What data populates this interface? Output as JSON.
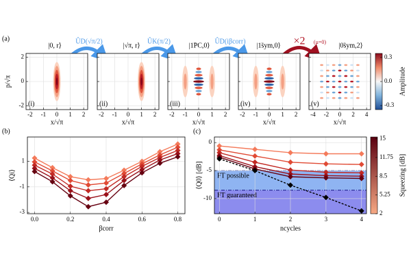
{
  "panel_a": {
    "label": "(a)",
    "states": [
      "|0, r⟩",
      "|√π, r⟩",
      "|1̃PC,0⟩",
      "|1̃sym,0⟩",
      "|0̃sym,2⟩"
    ],
    "operations": [
      "ÛD(√π/2)",
      "ÛK(π/2)",
      "ÛD(iβcorr)"
    ],
    "repeat": "×2",
    "repeat_note": "(μ=0)",
    "subpanels": [
      "(i)",
      "(ii)",
      "(iii)",
      "(iv)",
      "(v)"
    ],
    "xlabel": "x/√π",
    "ylabel": "p/√π",
    "xlim": [
      -2.3,
      2.3
    ],
    "xticks": [
      -2,
      -1,
      0,
      1,
      2
    ],
    "xlim_last": [
      -4.6,
      4.6
    ],
    "xticks_last": [
      -4,
      -2,
      0,
      2,
      4
    ],
    "ylim": [
      -2.3,
      2.3
    ],
    "yticks": [
      -2,
      0,
      2
    ],
    "colorbar": {
      "label": "Amplitude",
      "lim": [
        -0.35,
        0.35
      ],
      "ticks": [
        0.3,
        {
          "value": 0,
          "label": "0.0"
        },
        -0.3
      ]
    }
  },
  "chart_data": [
    {
      "type": "line",
      "label": "(b)",
      "xlabel": "βcorr",
      "ylabel": "⟨Qi⟩",
      "x": [
        0,
        0.1,
        0.2,
        0.3,
        0.4,
        0.5,
        0.6,
        0.7,
        0.8
      ],
      "xlim": [
        -0.04,
        0.84
      ],
      "xticks": [
        {
          "value": 0,
          "label": "0.0"
        },
        0.2,
        0.4,
        0.6,
        0.8
      ],
      "ylim": [
        -3.1,
        2.9
      ],
      "yticks": [
        1,
        -1,
        -3
      ],
      "grid": true,
      "series": [
        {
          "color": "#f47a5a",
          "values": [
            1.25,
            0.5,
            -0.2,
            -0.45,
            -0.35,
            0.3,
            1.0,
            1.75,
            2.35
          ]
        },
        {
          "color": "#e04a34",
          "values": [
            0.95,
            0.25,
            -0.5,
            -0.85,
            -0.7,
            0.05,
            0.8,
            1.5,
            2.1
          ]
        },
        {
          "color": "#c22a24",
          "values": [
            0.7,
            0.0,
            -0.95,
            -1.3,
            -1.15,
            -0.2,
            0.6,
            1.3,
            1.85
          ]
        },
        {
          "color": "#9a111a",
          "values": [
            0.45,
            -0.3,
            -1.3,
            -1.9,
            -1.6,
            -0.5,
            0.35,
            1.1,
            1.6
          ]
        },
        {
          "color": "#660010",
          "values": [
            0.2,
            -0.6,
            -1.7,
            -2.55,
            -2.2,
            -0.9,
            0.1,
            0.85,
            1.35
          ]
        }
      ]
    },
    {
      "type": "line",
      "label": "(c)",
      "xlabel": "ncycles",
      "ylabel": "⟨Q0⟩ [dB]",
      "x": [
        0,
        1,
        2,
        3,
        4
      ],
      "xlim": [
        -0.14,
        4.14
      ],
      "xticks": [
        0,
        1,
        2,
        3,
        4
      ],
      "ylim": [
        -12.7,
        1
      ],
      "yticks": [
        0,
        -5,
        -10
      ],
      "grid": true,
      "regions": [
        {
          "label": "FT possible",
          "upper": -5,
          "color": "#8fb4f2"
        },
        {
          "label": "FT guaranteed",
          "upper": -8.5,
          "color": "#8c8cee"
        }
      ],
      "series": [
        {
          "color": "#f47a5a",
          "values": [
            -0.6,
            -1.2,
            -1.8,
            -2.0,
            -2.0
          ]
        },
        {
          "color": "#e04a34",
          "values": [
            -1.3,
            -2.4,
            -3.5,
            -3.8,
            -3.9
          ]
        },
        {
          "color": "#c22a24",
          "values": [
            -1.8,
            -3.5,
            -4.9,
            -5.3,
            -5.4
          ]
        },
        {
          "color": "#9a111a",
          "values": [
            -2.3,
            -4.3,
            -5.6,
            -5.9,
            -6.0
          ]
        },
        {
          "color": "#660010",
          "values": [
            -2.6,
            -4.7,
            -6.1,
            -6.3,
            -6.4
          ]
        },
        {
          "color": "#000000",
          "dash": true,
          "values": [
            -2.9,
            -5.0,
            -7.6,
            -9.8,
            -12.2
          ]
        }
      ],
      "colorbar": {
        "label": "Squeezing [dB]",
        "lim": [
          2,
          15.3
        ],
        "ticks": [
          15,
          11.75,
          8.5,
          5.25,
          2
        ],
        "colors": [
          "#f7a984",
          "#5a0010"
        ]
      }
    }
  ]
}
